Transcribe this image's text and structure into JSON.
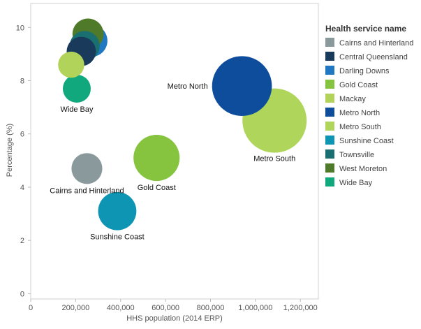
{
  "chart_data": {
    "type": "scatter",
    "xlabel": "HHS population (2014 ERP)",
    "ylabel": "Percentage (%)",
    "xlim": [
      0,
      1280000
    ],
    "ylim": [
      -0.2,
      10.9
    ],
    "x_ticks": [
      0,
      200000,
      400000,
      600000,
      800000,
      1000000,
      1200000
    ],
    "x_tick_labels": [
      "0",
      "200,000",
      "400,000",
      "600,000",
      "800,000",
      "1,000,000",
      "1,200,000"
    ],
    "y_ticks": [
      0,
      2,
      4,
      6,
      8,
      10
    ],
    "y_tick_labels": [
      "0",
      "2",
      "4",
      "6",
      "8",
      "10"
    ],
    "grid": false,
    "legend_title": "Health service name",
    "legend_position": "right",
    "series": [
      {
        "name": "Cairns and Hinterland",
        "color": "#8a9a9c",
        "x": 250000,
        "y": 4.7,
        "label": "Cairns and Hinterland"
      },
      {
        "name": "Central Queensland",
        "color": "#1a3a5c",
        "x": 225000,
        "y": 9.1,
        "label": ""
      },
      {
        "name": "Darling Downs",
        "color": "#1f78c1",
        "x": 270000,
        "y": 9.5,
        "label": ""
      },
      {
        "name": "Gold Coast",
        "color": "#86c440",
        "x": 560000,
        "y": 5.1,
        "label": "Gold Coast"
      },
      {
        "name": "Mackay",
        "color": "#b2d35a",
        "x": 180000,
        "y": 8.6,
        "label": ""
      },
      {
        "name": "Metro North",
        "color": "#0d4d9c",
        "x": 940000,
        "y": 7.8,
        "label": "Metro North"
      },
      {
        "name": "Metro South",
        "color": "#afd55a",
        "x": 1085000,
        "y": 6.5,
        "label": "Metro South"
      },
      {
        "name": "Sunshine Coast",
        "color": "#0f95b4",
        "x": 385000,
        "y": 3.1,
        "label": "Sunshine Coast"
      },
      {
        "name": "Townsville",
        "color": "#1a7070",
        "x": 240000,
        "y": 9.3,
        "label": ""
      },
      {
        "name": "West Moreton",
        "color": "#4e7a2a",
        "x": 255000,
        "y": 9.75,
        "label": ""
      },
      {
        "name": "Wide Bay",
        "color": "#10a87c",
        "x": 205000,
        "y": 7.7,
        "label": "Wide Bay"
      }
    ]
  }
}
